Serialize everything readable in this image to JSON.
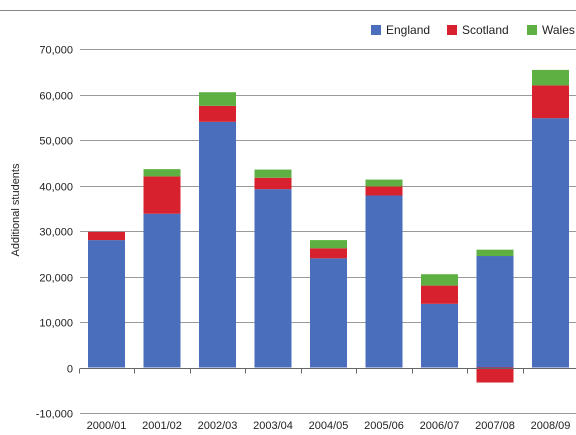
{
  "chart_data": {
    "type": "bar",
    "stacked": true,
    "categories": [
      "2000/01",
      "2001/02",
      "2002/03",
      "2003/04",
      "2004/05",
      "2005/06",
      "2006/07",
      "2007/08",
      "2008/09"
    ],
    "series": [
      {
        "name": "England",
        "color": "#4a6ebb",
        "values": [
          28000,
          33800,
          54000,
          39200,
          24000,
          37800,
          14000,
          24500,
          54800
        ]
      },
      {
        "name": "Scotland",
        "color": "#d7212e",
        "values": [
          1800,
          8200,
          3500,
          2500,
          2200,
          2000,
          4000,
          -3300,
          7200
        ]
      },
      {
        "name": "Wales",
        "color": "#5fb042",
        "values": [
          0,
          1600,
          3000,
          1800,
          1800,
          1500,
          2500,
          1400,
          3400
        ]
      }
    ],
    "ylabel": "Additional students",
    "xlabel": "",
    "title": "",
    "ylim": [
      -10000,
      70000
    ],
    "yticks": [
      -10000,
      0,
      10000,
      20000,
      30000,
      40000,
      50000,
      60000,
      70000
    ],
    "ytick_labels": [
      "-10,000",
      "0",
      "10,000",
      "20,000",
      "30,000",
      "40,000",
      "50,000",
      "60,000",
      "70,000"
    ],
    "grid": true,
    "legend_position": "top-right"
  }
}
